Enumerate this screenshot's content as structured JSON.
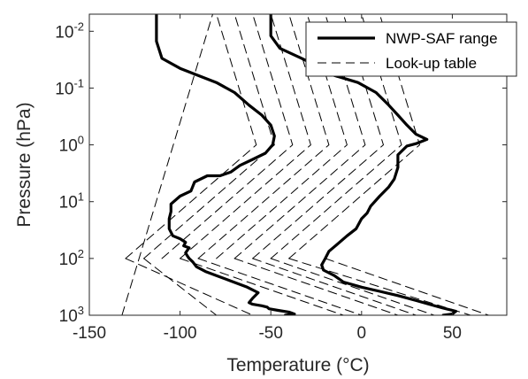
{
  "chart_data": {
    "type": "line",
    "title": "",
    "xlabel": "Temperature (°C)",
    "ylabel": "Pressure (hPa)",
    "xlim": [
      -150,
      80
    ],
    "ylim": [
      1000,
      0.005
    ],
    "y_scale": "log",
    "y_reversed": true,
    "grid": false,
    "legend_position": "top-right",
    "x_ticks": [
      -150,
      -100,
      -50,
      0,
      50
    ],
    "y_ticks": [
      {
        "value": 0.01,
        "base": "10",
        "exp": "-2"
      },
      {
        "value": 0.1,
        "base": "10",
        "exp": "-1"
      },
      {
        "value": 1,
        "base": "10",
        "exp": "0"
      },
      {
        "value": 10,
        "base": "10",
        "exp": "1"
      },
      {
        "value": 100,
        "base": "10",
        "exp": "2"
      },
      {
        "value": 1000,
        "base": "10",
        "exp": "3"
      }
    ],
    "series": [
      {
        "name": "NWP-SAF range",
        "style": "solid",
        "color": "#000000",
        "lines": [
          {
            "points": [
              [
                -113,
                0.005
              ],
              [
                -113,
                0.015
              ],
              [
                -110,
                0.03
              ],
              [
                -100,
                0.045
              ],
              [
                -90,
                0.06
              ],
              [
                -80,
                0.08
              ],
              [
                -70,
                0.12
              ],
              [
                -62,
                0.2
              ],
              [
                -55,
                0.3
              ],
              [
                -50,
                0.45
              ],
              [
                -48,
                0.7
              ],
              [
                -49,
                1.0
              ],
              [
                -53,
                1.4
              ],
              [
                -60,
                1.8
              ],
              [
                -67,
                2.3
              ],
              [
                -72,
                3.0
              ],
              [
                -78,
                3.5
              ],
              [
                -85,
                3.5
              ],
              [
                -92,
                4.5
              ],
              [
                -94,
                6.5
              ],
              [
                -100,
                8.0
              ],
              [
                -105,
                11
              ],
              [
                -105,
                15
              ],
              [
                -106,
                20
              ],
              [
                -106,
                30
              ],
              [
                -104,
                40
              ],
              [
                -100,
                45
              ],
              [
                -97,
                52
              ],
              [
                -98,
                60
              ],
              [
                -95,
                65
              ],
              [
                -96,
                72
              ],
              [
                -97,
                80
              ],
              [
                -96,
                90
              ],
              [
                -95,
                100
              ],
              [
                -93,
                115
              ],
              [
                -91,
                140
              ],
              [
                -86,
                170
              ],
              [
                -80,
                200
              ],
              [
                -72,
                250
              ],
              [
                -63,
                320
              ],
              [
                -57,
                400
              ],
              [
                -60,
                500
              ],
              [
                -62,
                600
              ],
              [
                -60,
                640
              ],
              [
                -55,
                680
              ],
              [
                -52,
                720
              ],
              [
                -51,
                770
              ],
              [
                -46,
                820
              ],
              [
                -40,
                880
              ],
              [
                -37,
                950
              ],
              [
                -42,
                1000
              ]
            ]
          },
          {
            "points": [
              [
                -50,
                0.005
              ],
              [
                -50,
                0.012
              ],
              [
                -45,
                0.02
              ],
              [
                -33,
                0.03
              ],
              [
                -22,
                0.045
              ],
              [
                -15,
                0.06
              ],
              [
                -2,
                0.08
              ],
              [
                8,
                0.12
              ],
              [
                15,
                0.2
              ],
              [
                20,
                0.3
              ],
              [
                25,
                0.45
              ],
              [
                30,
                0.65
              ],
              [
                36,
                0.8
              ],
              [
                30,
                0.95
              ],
              [
                25,
                1.05
              ],
              [
                20,
                1.5
              ],
              [
                20,
                2.5
              ],
              [
                18,
                4.0
              ],
              [
                15,
                5.5
              ],
              [
                10,
                8
              ],
              [
                5,
                12
              ],
              [
                3,
                16
              ],
              [
                0,
                20
              ],
              [
                -3,
                30
              ],
              [
                -8,
                40
              ],
              [
                -13,
                55
              ],
              [
                -18,
                75
              ],
              [
                -20,
                100
              ],
              [
                -22,
                130
              ],
              [
                -21,
                160
              ],
              [
                -15,
                200
              ],
              [
                -10,
                260
              ],
              [
                0,
                320
              ],
              [
                10,
                380
              ],
              [
                20,
                450
              ],
              [
                30,
                550
              ],
              [
                38,
                650
              ],
              [
                45,
                750
              ],
              [
                52,
                850
              ],
              [
                50,
                950
              ],
              [
                45,
                1000
              ]
            ]
          }
        ]
      },
      {
        "name": "Look-up table",
        "style": "dashed",
        "color": "#000000",
        "lines": [
          {
            "points": [
              [
                -132,
                1000
              ],
              [
                -82,
                0.005
              ]
            ]
          },
          {
            "points": [
              [
                -130,
                100
              ],
              [
                -58,
                1.0
              ],
              [
                -80,
                0.005
              ]
            ]
          },
          {
            "points": [
              [
                -120,
                100
              ],
              [
                -48,
                1.0
              ],
              [
                -70,
                0.005
              ]
            ]
          },
          {
            "points": [
              [
                -110,
                100
              ],
              [
                -38,
                1.0
              ],
              [
                -60,
                0.005
              ]
            ]
          },
          {
            "points": [
              [
                -100,
                100
              ],
              [
                -28,
                1.0
              ],
              [
                -50,
                0.005
              ]
            ]
          },
          {
            "points": [
              [
                -90,
                100
              ],
              [
                -18,
                1.0
              ],
              [
                -40,
                0.005
              ]
            ]
          },
          {
            "points": [
              [
                -80,
                100
              ],
              [
                -8,
                1.0
              ],
              [
                -30,
                0.005
              ]
            ]
          },
          {
            "points": [
              [
                -70,
                100
              ],
              [
                2,
                1.0
              ],
              [
                -20,
                0.005
              ]
            ]
          },
          {
            "points": [
              [
                -60,
                100
              ],
              [
                12,
                1.0
              ],
              [
                -10,
                0.005
              ]
            ]
          },
          {
            "points": [
              [
                -50,
                100
              ],
              [
                22,
                1.0
              ],
              [
                0,
                0.005
              ]
            ]
          },
          {
            "points": [
              [
                -40,
                100
              ],
              [
                32,
                1.0
              ],
              [
                10,
                0.005
              ]
            ]
          },
          {
            "points": [
              [
                -120,
                100
              ],
              [
                -80,
                1000
              ]
            ]
          },
          {
            "points": [
              [
                -130,
                100
              ],
              [
                -60,
                1000
              ]
            ]
          },
          {
            "points": [
              [
                -100,
                100
              ],
              [
                -10,
                1000
              ]
            ]
          },
          {
            "points": [
              [
                -90,
                100
              ],
              [
                0,
                1000
              ]
            ]
          },
          {
            "points": [
              [
                -70,
                100
              ],
              [
                20,
                1000
              ]
            ]
          },
          {
            "points": [
              [
                -60,
                100
              ],
              [
                30,
                1000
              ]
            ]
          },
          {
            "points": [
              [
                -50,
                100
              ],
              [
                40,
                1000
              ]
            ]
          },
          {
            "points": [
              [
                -40,
                100
              ],
              [
                60,
                1000
              ]
            ]
          },
          {
            "points": [
              [
                -20,
                100
              ],
              [
                70,
                1000
              ]
            ]
          }
        ]
      }
    ]
  }
}
